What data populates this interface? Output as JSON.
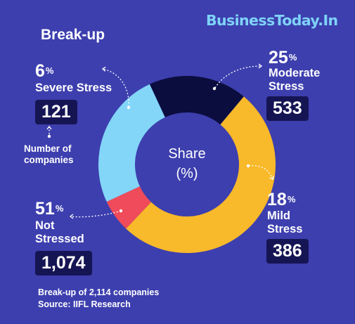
{
  "header": {
    "brand": "BusinessToday.In",
    "title": "Break-up"
  },
  "chart_data": {
    "type": "pie",
    "center_label": [
      "Share",
      "(%)"
    ],
    "categories": [
      "Severe Stress",
      "Moderate Stress",
      "Mild Stress",
      "Not Stressed"
    ],
    "values": [
      6,
      25,
      18,
      51
    ],
    "counts": [
      121,
      533,
      386,
      1074
    ],
    "colors": [
      "#ef4b5a",
      "#83d6f8",
      "#0c0d3f",
      "#f8b92a"
    ]
  },
  "labels": {
    "severe": {
      "pct": "6",
      "name": "Severe Stress",
      "count": "121"
    },
    "moderate": {
      "pct": "25",
      "name1": "Moderate",
      "name2": "Stress",
      "count": "533"
    },
    "mild": {
      "pct": "18",
      "name1": "Mild",
      "name2": "Stress",
      "count": "386"
    },
    "not_stressed": {
      "pct": "51",
      "name1": "Not",
      "name2": "Stressed",
      "count": "1,074"
    },
    "pct_sign": "%"
  },
  "legend_note": [
    "Number of",
    "companies"
  ],
  "footer": {
    "line1": "Break-up of 2,114 companies",
    "line2": "Source: IIFL Research"
  }
}
